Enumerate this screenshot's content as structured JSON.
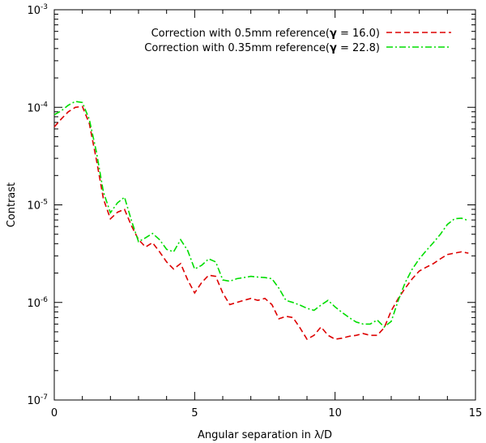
{
  "chart_data": {
    "type": "line",
    "title": "",
    "xlabel": "Angular separation in λ/D",
    "ylabel": "Contrast",
    "xlim": [
      0,
      15
    ],
    "ylim": [
      1e-07,
      0.001
    ],
    "yscale": "log",
    "grid": false,
    "legend_position": "top-right",
    "x_ticks": [
      0,
      5,
      10,
      15
    ],
    "x_tick_labels": [
      "0",
      "5",
      "10",
      "15"
    ],
    "y_ticks": [
      1e-07,
      1e-06,
      1e-05,
      0.0001,
      0.001
    ],
    "y_tick_labels": [
      {
        "base": "10",
        "exp": "-7"
      },
      {
        "base": "10",
        "exp": "-6"
      },
      {
        "base": "10",
        "exp": "-5"
      },
      {
        "base": "10",
        "exp": "-4"
      },
      {
        "base": "10",
        "exp": "-3"
      }
    ],
    "series": [
      {
        "name_prefix": "Correction with 0.5mm reference(",
        "name_symbol": "γ",
        "name_suffix": " = 16.0)",
        "color": "#dd0000",
        "style": "dashed",
        "x": [
          0.0,
          0.25,
          0.5,
          0.75,
          1.0,
          1.25,
          1.5,
          1.75,
          2.0,
          2.25,
          2.5,
          2.75,
          3.0,
          3.25,
          3.5,
          3.75,
          4.0,
          4.25,
          4.5,
          4.75,
          5.0,
          5.25,
          5.5,
          5.75,
          6.0,
          6.25,
          6.5,
          6.75,
          7.0,
          7.25,
          7.5,
          7.75,
          8.0,
          8.25,
          8.5,
          8.75,
          9.0,
          9.25,
          9.5,
          9.75,
          10.0,
          10.25,
          10.5,
          10.75,
          11.0,
          11.25,
          11.5,
          11.75,
          12.0,
          12.25,
          12.5,
          12.75,
          13.0,
          13.25,
          13.5,
          13.75,
          14.0,
          14.25,
          14.5,
          14.75
        ],
        "y": [
          6.3e-05,
          7.6e-05,
          9e-05,
          0.0001,
          0.000102,
          6.8e-05,
          2.9e-05,
          1.15e-05,
          7.2e-06,
          8.4e-06,
          9e-06,
          6.1e-06,
          4.4e-06,
          3.7e-06,
          4.1e-06,
          3.3e-06,
          2.6e-06,
          2.2e-06,
          2.5e-06,
          1.7e-06,
          1.25e-06,
          1.6e-06,
          1.9e-06,
          1.85e-06,
          1.25e-06,
          9.5e-07,
          1e-06,
          1.05e-06,
          1.1e-06,
          1.05e-06,
          1.1e-06,
          9.5e-07,
          6.8e-07,
          7.2e-07,
          7e-07,
          5.5e-07,
          4.2e-07,
          4.6e-07,
          5.6e-07,
          4.6e-07,
          4.2e-07,
          4.3e-07,
          4.5e-07,
          4.6e-07,
          4.8e-07,
          4.6e-07,
          4.6e-07,
          5.5e-07,
          8.2e-07,
          1.1e-06,
          1.4e-06,
          1.75e-06,
          2.1e-06,
          2.3e-06,
          2.5e-06,
          2.8e-06,
          3.1e-06,
          3.2e-06,
          3.3e-06,
          3.2e-06
        ]
      },
      {
        "name_prefix": "Correction with 0.35mm reference(",
        "name_symbol": "γ",
        "name_suffix": " = 22.8)",
        "color": "#00dd00",
        "style": "dashdot",
        "x": [
          0.0,
          0.25,
          0.5,
          0.75,
          1.0,
          1.25,
          1.5,
          1.75,
          2.0,
          2.25,
          2.5,
          2.75,
          3.0,
          3.25,
          3.5,
          3.75,
          4.0,
          4.25,
          4.5,
          4.75,
          5.0,
          5.25,
          5.5,
          5.75,
          6.0,
          6.25,
          6.5,
          6.75,
          7.0,
          7.25,
          7.5,
          7.75,
          8.0,
          8.25,
          8.5,
          8.75,
          9.0,
          9.25,
          9.5,
          9.75,
          10.0,
          10.25,
          10.5,
          10.75,
          11.0,
          11.25,
          11.5,
          11.75,
          12.0,
          12.25,
          12.5,
          12.75,
          13.0,
          13.25,
          13.5,
          13.75,
          14.0,
          14.25,
          14.5,
          14.75
        ],
        "y": [
          8.4e-05,
          9.2e-05,
          0.000105,
          0.000115,
          0.000112,
          7.5e-05,
          3.5e-05,
          1.35e-05,
          8.3e-06,
          1.05e-05,
          1.2e-05,
          6.9e-06,
          4.2e-06,
          4.6e-06,
          5.1e-06,
          4.4e-06,
          3.5e-06,
          3.3e-06,
          4.4e-06,
          3.4e-06,
          2.2e-06,
          2.4e-06,
          2.8e-06,
          2.6e-06,
          1.7e-06,
          1.65e-06,
          1.75e-06,
          1.8e-06,
          1.85e-06,
          1.82e-06,
          1.8e-06,
          1.75e-06,
          1.4e-06,
          1.05e-06,
          1e-06,
          9.4e-07,
          8.7e-07,
          8.3e-07,
          9.4e-07,
          1.05e-06,
          9e-07,
          7.9e-07,
          7e-07,
          6.3e-07,
          6e-07,
          6e-07,
          6.6e-07,
          5.6e-07,
          6.4e-07,
          1.05e-06,
          1.6e-06,
          2.2e-06,
          2.8e-06,
          3.4e-06,
          4.1e-06,
          5e-06,
          6.3e-06,
          7.2e-06,
          7.3e-06,
          6.9e-06
        ]
      }
    ]
  }
}
